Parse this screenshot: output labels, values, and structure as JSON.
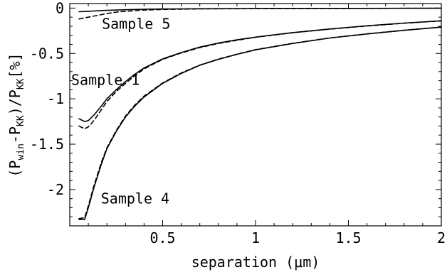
{
  "chart_data": {
    "type": "line",
    "title": "",
    "xlabel": "separation (μm)",
    "ylabel": {
      "open": "(",
      "p1": "P",
      "p1_sub": "win",
      "minus": "-",
      "p2": "P",
      "p2_sub": "KK",
      "close": ")",
      "slash": "/",
      "p3": "P",
      "p3_sub": "KK",
      "unit": "[%]"
    },
    "xlim": [
      0.0,
      2.0
    ],
    "ylim": [
      -2.4,
      0.05
    ],
    "x_ticks": [
      0.5,
      1,
      1.5,
      2
    ],
    "x_tick_labels": [
      "0.5",
      "1",
      "1.5",
      "2"
    ],
    "y_ticks": [
      0,
      -0.5,
      -1,
      -1.5,
      -2
    ],
    "y_tick_labels": [
      "0",
      "-0.5",
      "-1",
      "-1.5",
      "-2"
    ],
    "grid": false,
    "series": [
      {
        "name": "Sample 5",
        "style": "solid",
        "points": [
          [
            0.05,
            -0.04
          ],
          [
            0.1,
            -0.035
          ],
          [
            0.15,
            -0.03
          ],
          [
            0.2,
            -0.025
          ],
          [
            0.3,
            -0.018
          ],
          [
            0.4,
            -0.013
          ],
          [
            0.5,
            -0.01
          ],
          [
            0.7,
            -0.007
          ],
          [
            1.0,
            -0.005
          ],
          [
            1.5,
            -0.003
          ],
          [
            2.0,
            -0.002
          ]
        ]
      },
      {
        "name": "Sample 5",
        "style": "dashed",
        "points": [
          [
            0.05,
            -0.12
          ],
          [
            0.1,
            -0.1
          ],
          [
            0.15,
            -0.08
          ],
          [
            0.2,
            -0.06
          ],
          [
            0.25,
            -0.045
          ],
          [
            0.3,
            -0.035
          ],
          [
            0.4,
            -0.022
          ],
          [
            0.5,
            -0.015
          ],
          [
            0.7,
            -0.009
          ],
          [
            1.0,
            -0.006
          ],
          [
            1.5,
            -0.004
          ],
          [
            2.0,
            -0.002
          ]
        ]
      },
      {
        "name": "Sample 1",
        "style": "solid",
        "points": [
          [
            0.05,
            -1.22
          ],
          [
            0.08,
            -1.25
          ],
          [
            0.1,
            -1.24
          ],
          [
            0.13,
            -1.18
          ],
          [
            0.17,
            -1.08
          ],
          [
            0.2,
            -1.0
          ],
          [
            0.25,
            -0.9
          ],
          [
            0.3,
            -0.81
          ],
          [
            0.35,
            -0.73
          ],
          [
            0.4,
            -0.66
          ],
          [
            0.5,
            -0.56
          ],
          [
            0.6,
            -0.49
          ],
          [
            0.7,
            -0.43
          ],
          [
            0.8,
            -0.385
          ],
          [
            0.9,
            -0.35
          ],
          [
            1.0,
            -0.32
          ],
          [
            1.2,
            -0.27
          ],
          [
            1.4,
            -0.23
          ],
          [
            1.6,
            -0.195
          ],
          [
            1.8,
            -0.165
          ],
          [
            2.0,
            -0.14
          ]
        ]
      },
      {
        "name": "Sample 1",
        "style": "dashed",
        "points": [
          [
            0.05,
            -1.3
          ],
          [
            0.08,
            -1.33
          ],
          [
            0.1,
            -1.31
          ],
          [
            0.13,
            -1.24
          ],
          [
            0.17,
            -1.12
          ],
          [
            0.2,
            -1.03
          ],
          [
            0.25,
            -0.92
          ],
          [
            0.3,
            -0.83
          ],
          [
            0.35,
            -0.745
          ],
          [
            0.4,
            -0.67
          ],
          [
            0.5,
            -0.565
          ],
          [
            0.6,
            -0.495
          ],
          [
            0.7,
            -0.435
          ],
          [
            0.8,
            -0.39
          ],
          [
            0.9,
            -0.355
          ],
          [
            1.0,
            -0.322
          ],
          [
            1.2,
            -0.272
          ],
          [
            1.4,
            -0.232
          ],
          [
            1.6,
            -0.197
          ],
          [
            1.8,
            -0.167
          ],
          [
            2.0,
            -0.142
          ]
        ]
      },
      {
        "name": "Sample 4",
        "style": "solid",
        "points": [
          [
            0.05,
            -2.33
          ],
          [
            0.08,
            -2.33
          ],
          [
            0.1,
            -2.2
          ],
          [
            0.13,
            -1.98
          ],
          [
            0.17,
            -1.72
          ],
          [
            0.2,
            -1.55
          ],
          [
            0.25,
            -1.36
          ],
          [
            0.3,
            -1.2
          ],
          [
            0.35,
            -1.08
          ],
          [
            0.4,
            -0.98
          ],
          [
            0.5,
            -0.83
          ],
          [
            0.6,
            -0.72
          ],
          [
            0.7,
            -0.63
          ],
          [
            0.8,
            -0.565
          ],
          [
            0.9,
            -0.51
          ],
          [
            1.0,
            -0.46
          ],
          [
            1.2,
            -0.39
          ],
          [
            1.4,
            -0.33
          ],
          [
            1.6,
            -0.285
          ],
          [
            1.8,
            -0.245
          ],
          [
            2.0,
            -0.21
          ]
        ]
      },
      {
        "name": "Sample 4",
        "style": "dashed",
        "points": [
          [
            0.05,
            -2.32
          ],
          [
            0.08,
            -2.31
          ],
          [
            0.1,
            -2.18
          ],
          [
            0.13,
            -1.96
          ],
          [
            0.17,
            -1.7
          ],
          [
            0.2,
            -1.54
          ],
          [
            0.25,
            -1.35
          ],
          [
            0.3,
            -1.19
          ],
          [
            0.35,
            -1.07
          ],
          [
            0.4,
            -0.97
          ],
          [
            0.5,
            -0.825
          ],
          [
            0.6,
            -0.715
          ],
          [
            0.7,
            -0.628
          ],
          [
            0.8,
            -0.562
          ],
          [
            0.9,
            -0.508
          ],
          [
            1.0,
            -0.458
          ],
          [
            1.2,
            -0.388
          ],
          [
            1.4,
            -0.329
          ],
          [
            1.6,
            -0.284
          ],
          [
            1.8,
            -0.244
          ],
          [
            2.0,
            -0.209
          ]
        ]
      }
    ],
    "annotations": [
      {
        "text": "Sample 5",
        "x": 0.165,
        "y": -0.175
      },
      {
        "text": "Sample 1",
        "x": 0.0,
        "y": -0.79
      },
      {
        "text": "Sample 4",
        "x": 0.16,
        "y": -2.1
      }
    ]
  }
}
